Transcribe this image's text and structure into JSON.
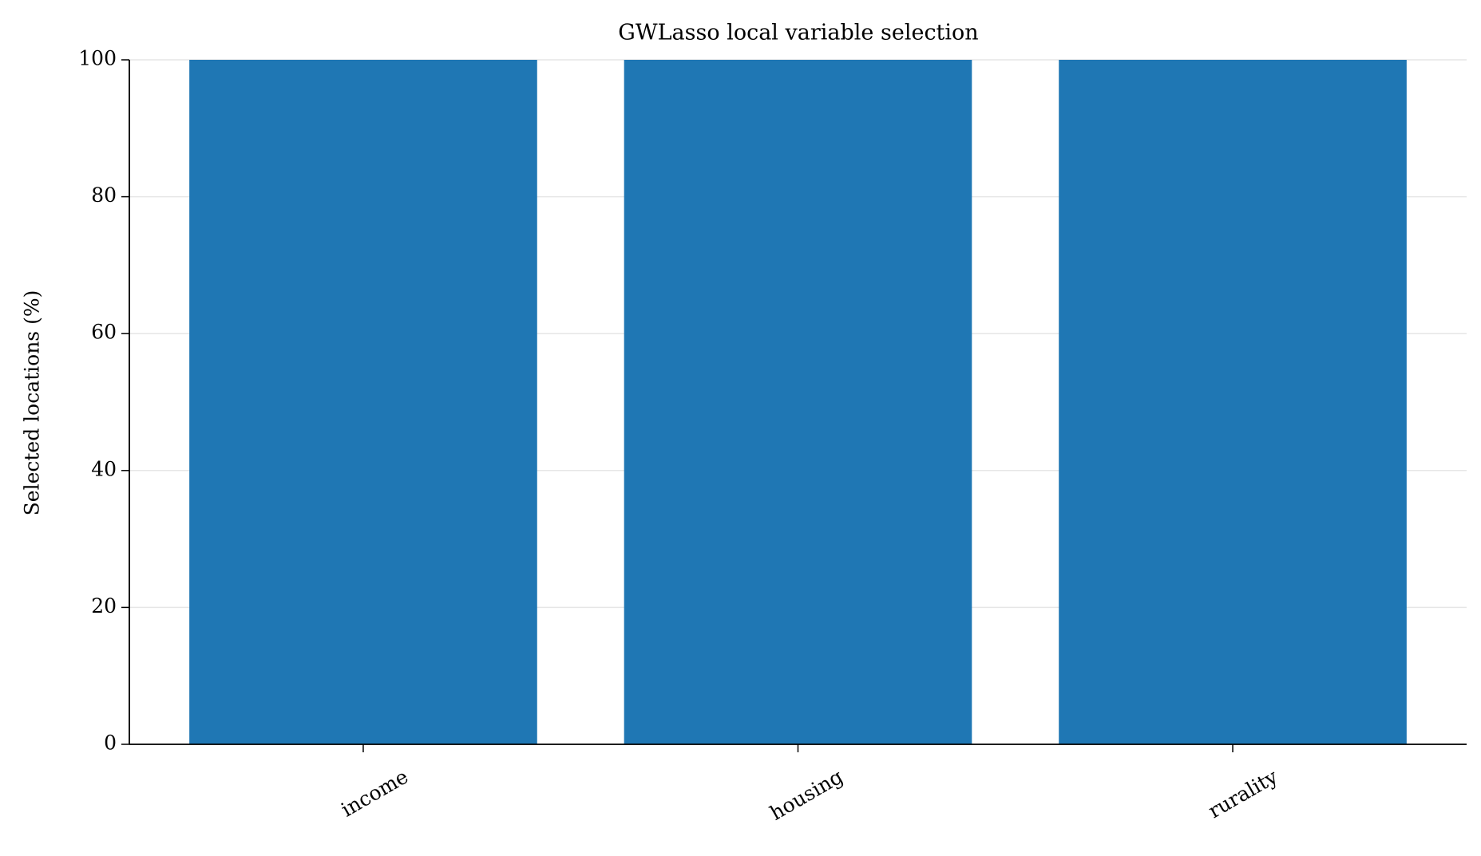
{
  "chart_data": {
    "type": "bar",
    "title": "GWLasso local variable selection",
    "y_label": "Selected locations (%)",
    "categories": [
      "income",
      "housing",
      "rurality"
    ],
    "values": [
      100,
      100,
      100
    ],
    "color": "#1f77b4",
    "ylim": [
      0,
      100
    ],
    "yticks": [
      0,
      20,
      40,
      60,
      80,
      100
    ],
    "grid": true
  }
}
